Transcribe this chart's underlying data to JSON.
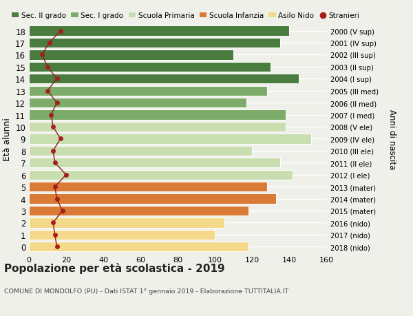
{
  "ages": [
    18,
    17,
    16,
    15,
    14,
    13,
    12,
    11,
    10,
    9,
    8,
    7,
    6,
    5,
    4,
    3,
    2,
    1,
    0
  ],
  "right_labels": [
    "2000 (V sup)",
    "2001 (IV sup)",
    "2002 (III sup)",
    "2003 (II sup)",
    "2004 (I sup)",
    "2005 (III med)",
    "2006 (II med)",
    "2007 (I med)",
    "2008 (V ele)",
    "2009 (IV ele)",
    "2010 (III ele)",
    "2011 (II ele)",
    "2012 (I ele)",
    "2013 (mater)",
    "2014 (mater)",
    "2015 (mater)",
    "2016 (nido)",
    "2017 (nido)",
    "2018 (nido)"
  ],
  "bar_values": [
    140,
    135,
    110,
    130,
    145,
    128,
    117,
    138,
    138,
    152,
    120,
    135,
    142,
    128,
    133,
    118,
    105,
    100,
    118
  ],
  "bar_colors": [
    "#4a7c3f",
    "#4a7c3f",
    "#4a7c3f",
    "#4a7c3f",
    "#4a7c3f",
    "#7dab6a",
    "#7dab6a",
    "#7dab6a",
    "#c8ddb0",
    "#c8ddb0",
    "#c8ddb0",
    "#c8ddb0",
    "#c8ddb0",
    "#d97b35",
    "#d97b35",
    "#d97b35",
    "#f5d98b",
    "#f5d98b",
    "#f5d98b"
  ],
  "stranieri_values": [
    17,
    11,
    7,
    10,
    15,
    10,
    15,
    12,
    13,
    17,
    13,
    14,
    20,
    14,
    15,
    18,
    13,
    14,
    15
  ],
  "legend_labels": [
    "Sec. II grado",
    "Sec. I grado",
    "Scuola Primaria",
    "Scuola Infanzia",
    "Asilo Nido",
    "Stranieri"
  ],
  "legend_colors": [
    "#4a7c3f",
    "#7dab6a",
    "#c8ddb0",
    "#d97b35",
    "#f5d98b",
    "#a81c1c"
  ],
  "ylabel_label": "Età alunni",
  "right_ylabel": "Anni di nascita",
  "title": "Popolazione per età scolastica - 2019",
  "subtitle": "COMUNE DI MONDOLFO (PU) - Dati ISTAT 1° gennaio 2019 - Elaborazione TUTTITALIA.IT",
  "xlim": [
    0,
    160
  ],
  "xticks": [
    0,
    20,
    40,
    60,
    80,
    100,
    120,
    140,
    160
  ],
  "bg_color": "#f0f0eb",
  "grid_color": "#ffffff",
  "bar_height": 0.82
}
